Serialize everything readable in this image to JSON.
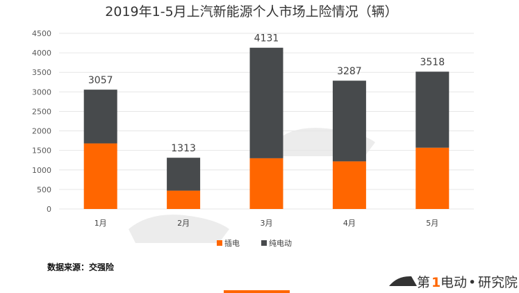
{
  "chart_data": {
    "type": "bar",
    "stacked": true,
    "title": "2019年1-5月上汽新能源个人市场上险情况（辆）",
    "categories": [
      "1月",
      "2月",
      "3月",
      "4月",
      "5月"
    ],
    "series": [
      {
        "name": "插电",
        "values": [
          1680,
          470,
          1300,
          1220,
          1570
        ],
        "color": "#ff6600"
      },
      {
        "name": "纯电动",
        "values": [
          1377,
          843,
          2831,
          2067,
          1948
        ],
        "color": "#474a4c"
      }
    ],
    "totals": [
      3057,
      1313,
      4131,
      3287,
      3518
    ],
    "ylim": [
      0,
      4500
    ],
    "yticks": [
      0,
      500,
      1000,
      1500,
      2000,
      2500,
      3000,
      3500,
      4000,
      4500
    ],
    "grid": true,
    "legend_position": "bottom-center"
  },
  "source_label": "数据来源：交强险",
  "brand": {
    "name_part1": "第",
    "name_highlight": "1",
    "name_part2": "电动",
    "separator": "•",
    "suffix": "研究院",
    "accent_color": "#ff6600"
  }
}
